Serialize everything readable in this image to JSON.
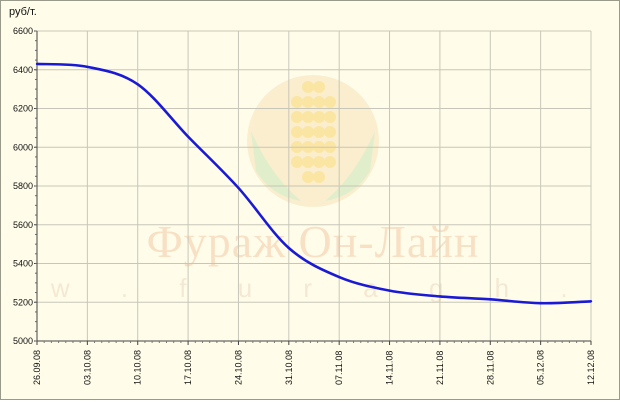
{
  "watermark": {
    "brand": "Фураж Он-Лайн",
    "url": "w w w . f u r a g h . r u"
  },
  "chart_data": {
    "type": "line",
    "title": "",
    "xlabel": "",
    "ylabel": "руб/т.",
    "ylim": [
      5000,
      6600
    ],
    "yticks": [
      5000,
      5200,
      5400,
      5600,
      5800,
      6000,
      6200,
      6400,
      6600
    ],
    "grid": true,
    "legend": "none",
    "categories": [
      "26.09.08",
      "03.10.08",
      "10.10.08",
      "17.10.08",
      "24.10.08",
      "31.10.08",
      "07.11.08",
      "14.11.08",
      "21.11.08",
      "28.11.08",
      "05.12.08",
      "12.12.08"
    ],
    "series": [
      {
        "color": "#1a1ad6",
        "values": [
          6430,
          6415,
          6325,
          6055,
          5790,
          5480,
          5330,
          5260,
          5230,
          5215,
          5195,
          5205
        ]
      }
    ]
  }
}
